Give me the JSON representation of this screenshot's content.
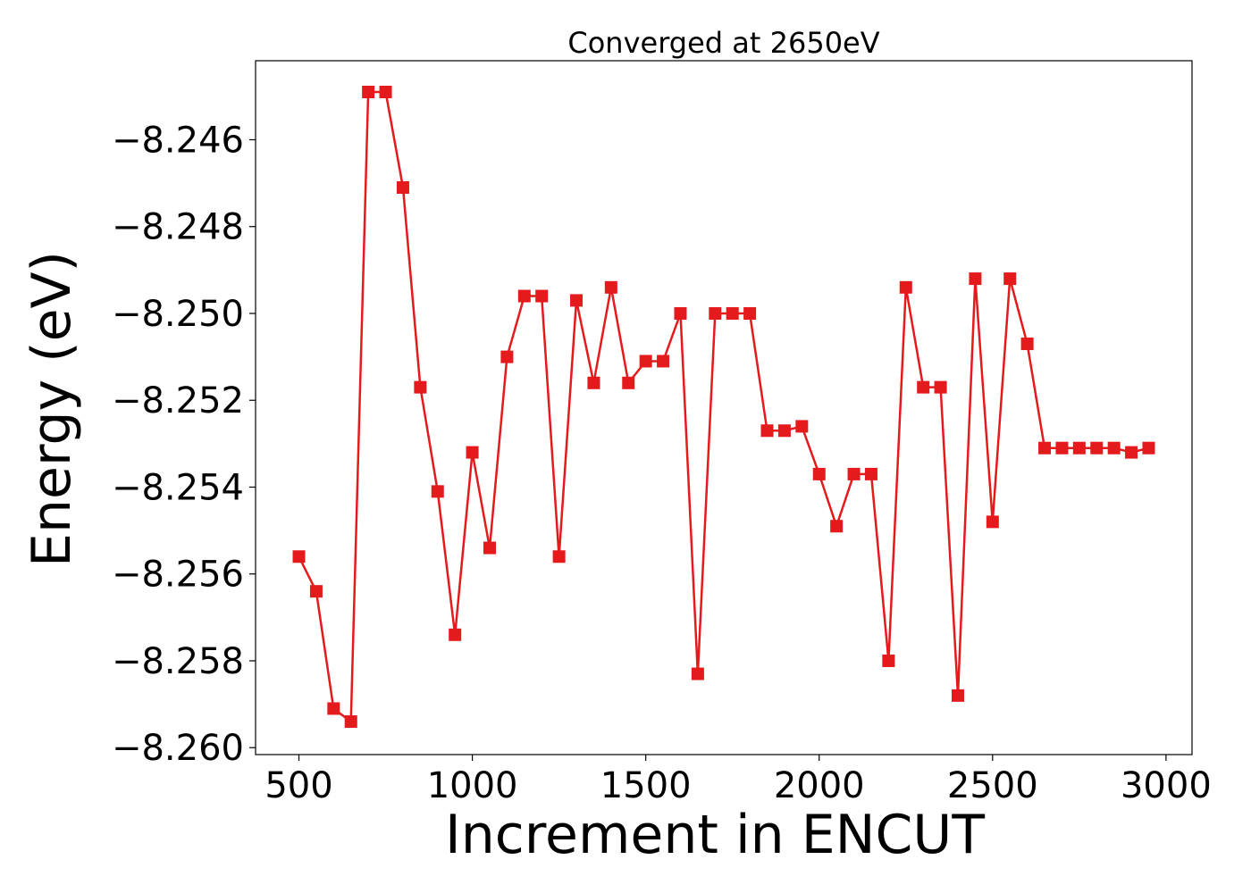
{
  "chart_data": {
    "type": "line",
    "title": "Converged at 2650eV",
    "xlabel": "Increment in ENCUT",
    "ylabel": "Energy (eV)",
    "xlim": [
      375,
      3075
    ],
    "ylim": [
      -8.26016,
      -8.24418
    ],
    "x_ticks": [
      500,
      1000,
      1500,
      2000,
      2500,
      3000
    ],
    "y_ticks": [
      -8.246,
      -8.248,
      -8.25,
      -8.252,
      -8.254,
      -8.256,
      -8.258,
      -8.26
    ],
    "grid": false,
    "marker": "square",
    "color": "#e41a1c",
    "series": [
      {
        "x": [
          500,
          550,
          600,
          650,
          700,
          750,
          800,
          850,
          900,
          950,
          1000,
          1050,
          1100,
          1150,
          1200,
          1250,
          1300,
          1350,
          1400,
          1450,
          1500,
          1550,
          1600,
          1650,
          1700,
          1750,
          1800,
          1850,
          1900,
          1950,
          2000,
          2050,
          2100,
          2150,
          2200,
          2250,
          2300,
          2350,
          2400,
          2450,
          2500,
          2550,
          2600,
          2650,
          2700,
          2750,
          2800,
          2850,
          2900,
          2950
        ],
        "y": [
          -8.2556,
          -8.2564,
          -8.2591,
          -8.2594,
          -8.2449,
          -8.2449,
          -8.2471,
          -8.2517,
          -8.2541,
          -8.2574,
          -8.2532,
          -8.2554,
          -8.251,
          -8.2496,
          -8.2496,
          -8.2556,
          -8.2497,
          -8.2516,
          -8.2494,
          -8.2516,
          -8.2511,
          -8.2511,
          -8.25,
          -8.2583,
          -8.25,
          -8.25,
          -8.25,
          -8.2527,
          -8.2527,
          -8.2526,
          -8.2537,
          -8.2549,
          -8.2537,
          -8.2537,
          -8.258,
          -8.2494,
          -8.2517,
          -8.2517,
          -8.2588,
          -8.2492,
          -8.2548,
          -8.2492,
          -8.2507,
          -8.2531,
          -8.2531,
          -8.2531,
          -8.2531,
          -8.2531,
          -8.2532,
          -8.2531
        ]
      }
    ]
  }
}
